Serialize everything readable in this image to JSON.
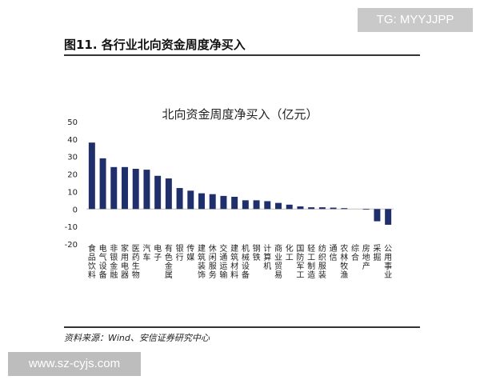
{
  "watermarks": {
    "top": "TG: MYYJJPP",
    "bottom": "www.sz-cyjs.com"
  },
  "figure": {
    "title": "图11. 各行业北向资金周度净买入",
    "source": "资料来源：Wind、安信证券研究中心"
  },
  "colors": {
    "bar": "#1f2f6b",
    "axis": "#bfbfbf",
    "text": "#222222"
  },
  "chart_data": {
    "type": "bar",
    "title": "北向资金周度净买入（亿元）",
    "xlabel": "",
    "ylabel": "",
    "ylim": [
      -20,
      50
    ],
    "yticks": [
      50,
      40,
      30,
      20,
      10,
      0,
      -10,
      -20
    ],
    "grid": false,
    "categories": [
      "食品饮料",
      "电气设备",
      "非银金融",
      "家用电器",
      "医药生物",
      "汽车",
      "电子",
      "有色金属",
      "银行",
      "传媒",
      "建筑装饰",
      "休闲服务",
      "交通运输",
      "建筑材料",
      "机械设备",
      "钢铁",
      "计算机",
      "商业贸易",
      "化工",
      "国防军工",
      "轻工制造",
      "纺织服装",
      "通信",
      "农林牧渔",
      "综合",
      "房地产",
      "采掘",
      "公用事业"
    ],
    "values": [
      38,
      29,
      24,
      24,
      23,
      22.5,
      19,
      17.5,
      12,
      10.5,
      9,
      8.5,
      7.5,
      7,
      5,
      5,
      4.5,
      3.5,
      2.5,
      1.5,
      1,
      1,
      0.8,
      0.5,
      0,
      -0.3,
      -7,
      -9
    ]
  }
}
